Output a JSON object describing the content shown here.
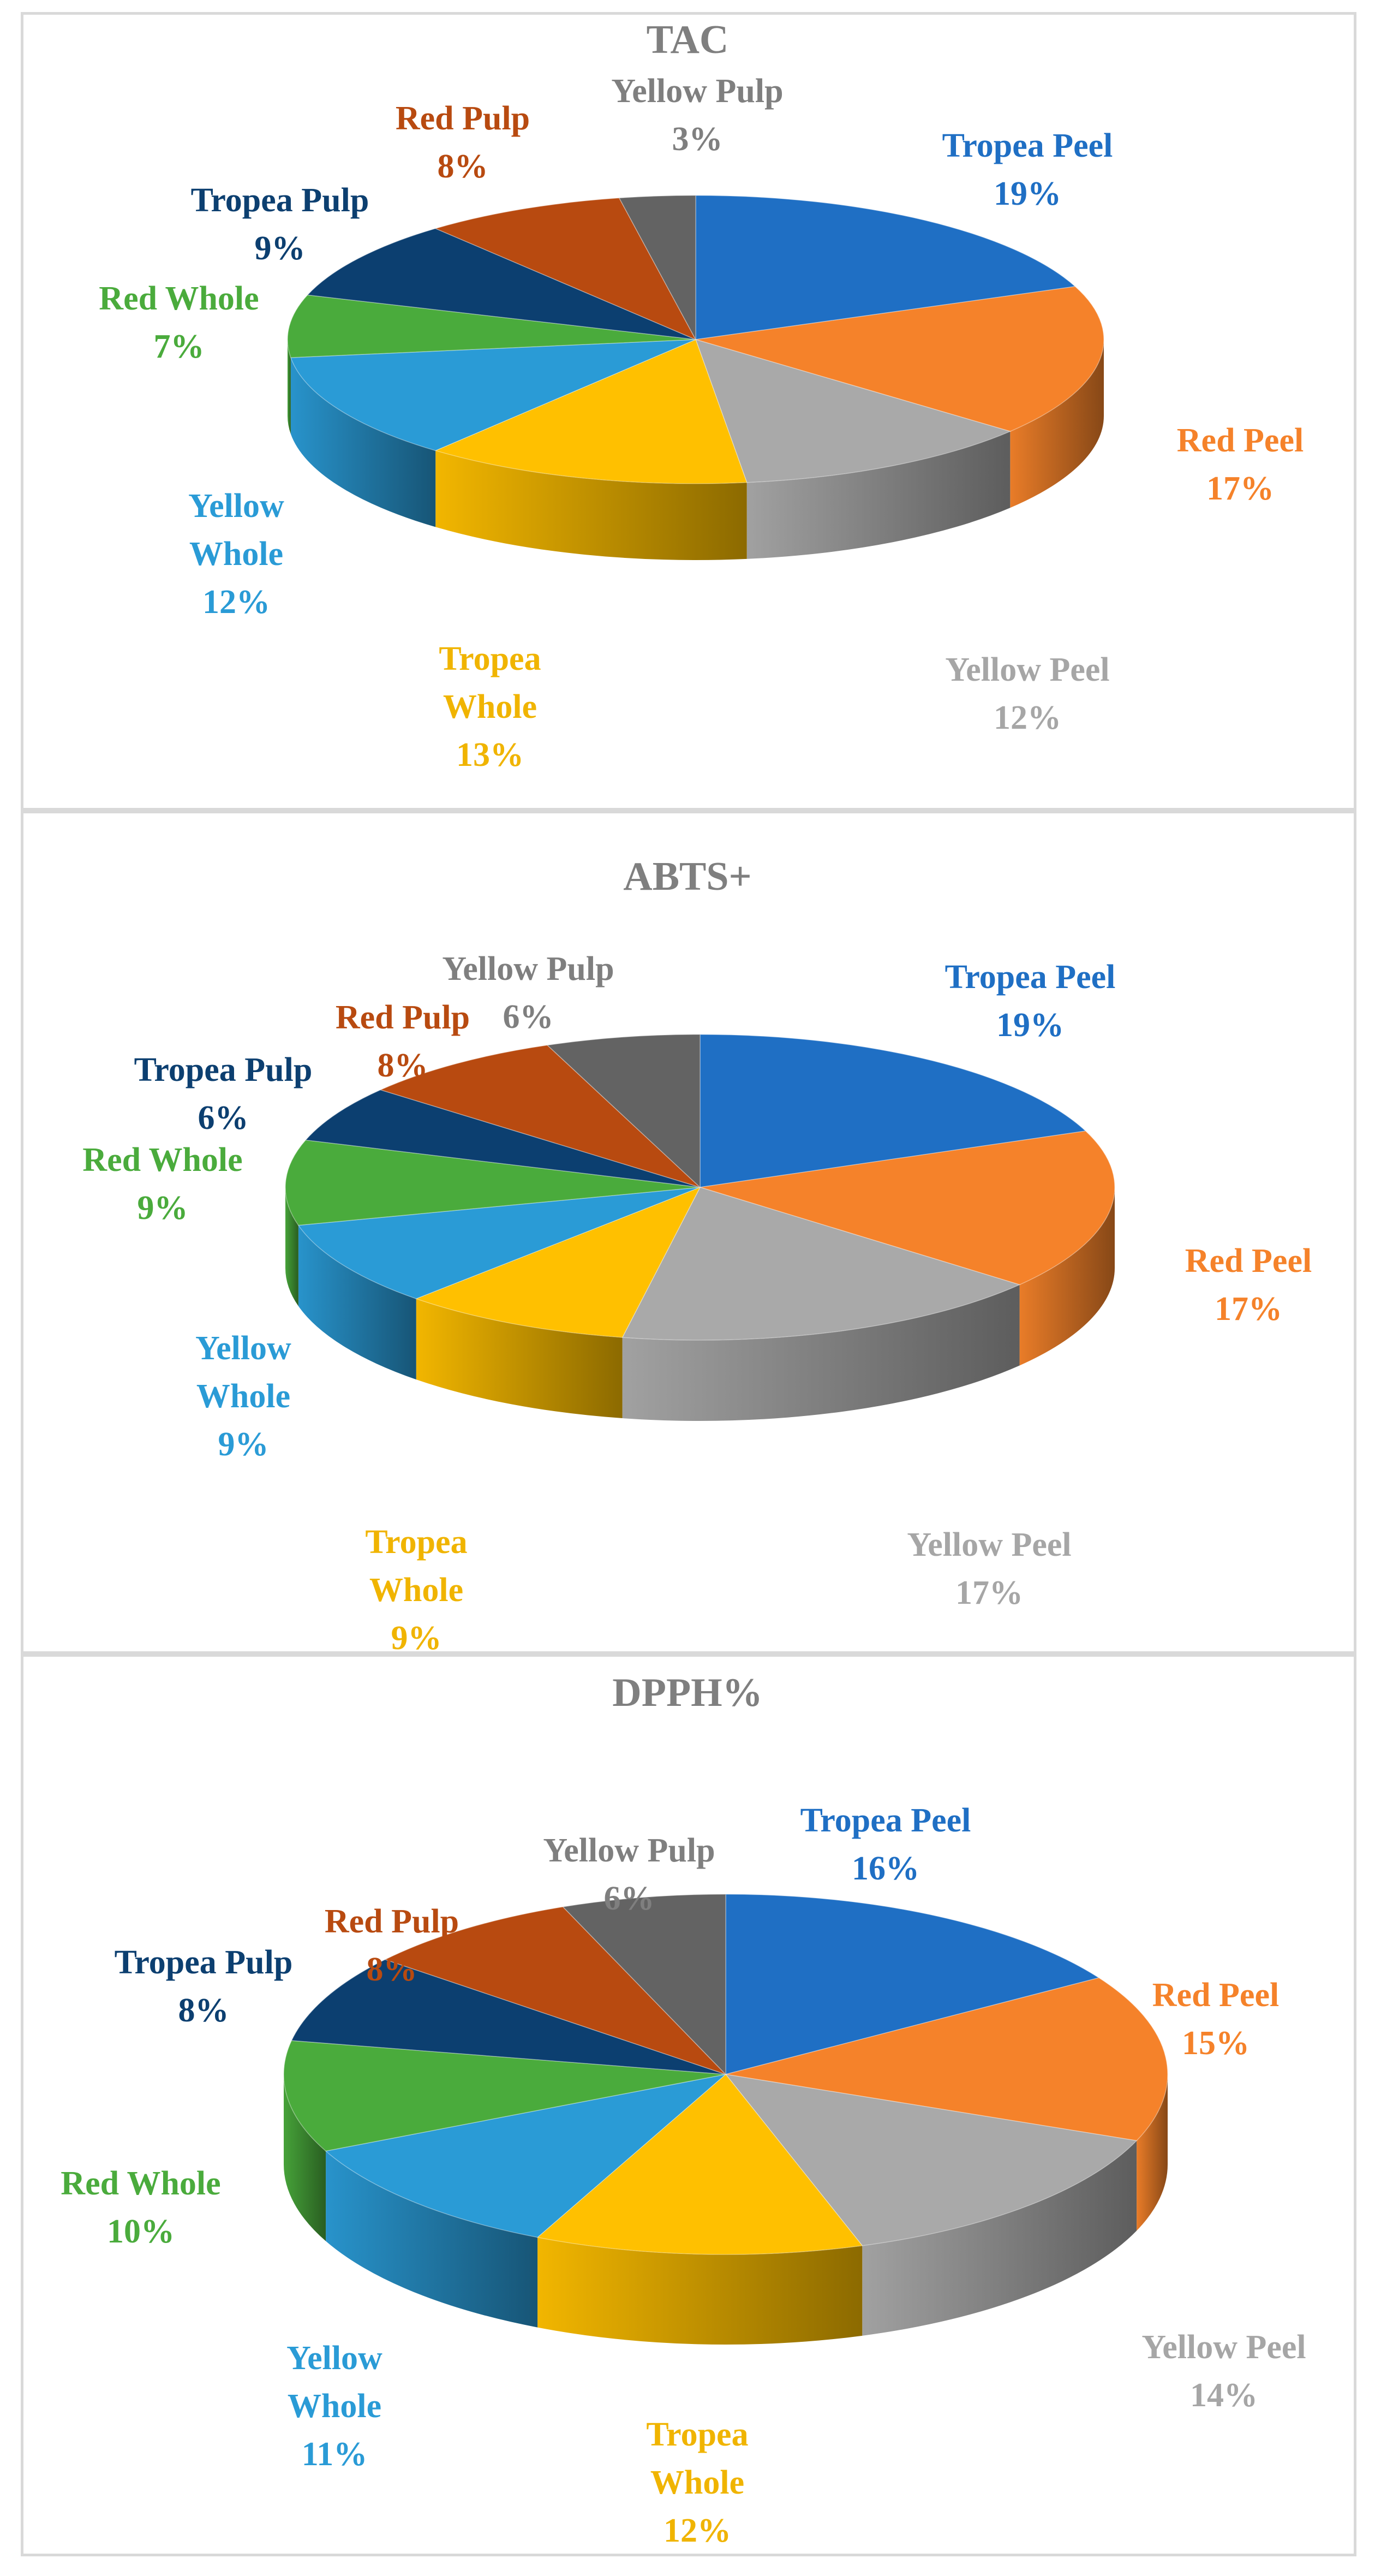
{
  "colors": {
    "Tropea Peel": "#1f6fc4",
    "Red Peel": "#f5822a",
    "Yellow Peel": "#a9a9a9",
    "Tropea Whole": "#ffc000",
    "Yellow Whole": "#2a9bd6",
    "Red Whole": "#4aab3c",
    "Tropea Pulp": "#0c3f70",
    "Red Pulp": "#b84a10",
    "Yellow Pulp": "#636363"
  },
  "label_colors": {
    "Tropea Peel": "#1f6fc4",
    "Red Peel": "#f5822a",
    "Yellow Peel": "#a6a6a6",
    "Tropea Whole": "#f0b400",
    "Yellow Whole": "#2a9bd6",
    "Red Whole": "#4aab3c",
    "Tropea Pulp": "#0c3f70",
    "Red Pulp": "#b84a10",
    "Yellow Pulp": "#7f7f7f"
  },
  "chart_data": [
    {
      "type": "pie",
      "title": "TAC",
      "categories": [
        "Tropea Peel",
        "Red Peel",
        "Yellow Peel",
        "Tropea Whole",
        "Yellow Whole",
        "Red Whole",
        "Tropea Pulp",
        "Red Pulp",
        "Yellow Pulp"
      ],
      "values": [
        19,
        17,
        12,
        13,
        12,
        7,
        9,
        8,
        3
      ],
      "labels": [
        {
          "name": [
            "Tropea Peel"
          ],
          "pct": "19%"
        },
        {
          "name": [
            "Red Peel"
          ],
          "pct": "17%"
        },
        {
          "name": [
            "Yellow Peel"
          ],
          "pct": "12%"
        },
        {
          "name": [
            "Tropea",
            "Whole"
          ],
          "pct": "13%"
        },
        {
          "name": [
            "Yellow",
            "Whole"
          ],
          "pct": "12%"
        },
        {
          "name": [
            "Red Whole"
          ],
          "pct": "7%"
        },
        {
          "name": [
            "Tropea Pulp"
          ],
          "pct": "9%"
        },
        {
          "name": [
            "Red Pulp"
          ],
          "pct": "8%"
        },
        {
          "name": [
            "Yellow Pulp"
          ],
          "pct": "3%"
        }
      ]
    },
    {
      "type": "pie",
      "title": "ABTS+",
      "categories": [
        "Tropea Peel",
        "Red Peel",
        "Yellow Peel",
        "Tropea Whole",
        "Yellow Whole",
        "Red Whole",
        "Tropea Pulp",
        "Red Pulp",
        "Yellow Pulp"
      ],
      "values": [
        19,
        17,
        17,
        9,
        9,
        9,
        6,
        8,
        6
      ],
      "labels": [
        {
          "name": [
            "Tropea Peel"
          ],
          "pct": "19%"
        },
        {
          "name": [
            "Red Peel"
          ],
          "pct": "17%"
        },
        {
          "name": [
            "Yellow Peel"
          ],
          "pct": "17%"
        },
        {
          "name": [
            "Tropea",
            "Whole"
          ],
          "pct": "9%"
        },
        {
          "name": [
            "Yellow",
            "Whole"
          ],
          "pct": "9%"
        },
        {
          "name": [
            "Red Whole"
          ],
          "pct": "9%"
        },
        {
          "name": [
            "Tropea Pulp"
          ],
          "pct": "6%"
        },
        {
          "name": [
            "Red Pulp"
          ],
          "pct": "8%"
        },
        {
          "name": [
            "Yellow Pulp"
          ],
          "pct": "6%"
        }
      ]
    },
    {
      "type": "pie",
      "title": "DPPH%",
      "categories": [
        "Tropea Peel",
        "Red Peel",
        "Yellow Peel",
        "Tropea Whole",
        "Yellow Whole",
        "Red Whole",
        "Tropea Pulp",
        "Red Pulp",
        "Yellow Pulp"
      ],
      "values": [
        16,
        15,
        14,
        12,
        11,
        10,
        8,
        8,
        6
      ],
      "labels": [
        {
          "name": [
            "Tropea Peel"
          ],
          "pct": "16%"
        },
        {
          "name": [
            "Red Peel"
          ],
          "pct": "15%"
        },
        {
          "name": [
            "Yellow Peel"
          ],
          "pct": "14%"
        },
        {
          "name": [
            "Tropea",
            "Whole"
          ],
          "pct": "12%"
        },
        {
          "name": [
            "Yellow",
            "Whole"
          ],
          "pct": "11%"
        },
        {
          "name": [
            "Red Whole"
          ],
          "pct": "10%"
        },
        {
          "name": [
            "Tropea Pulp"
          ],
          "pct": "8%"
        },
        {
          "name": [
            "Red Pulp"
          ],
          "pct": "8%"
        },
        {
          "name": [
            "Yellow Pulp"
          ],
          "pct": "6%"
        }
      ]
    }
  ]
}
